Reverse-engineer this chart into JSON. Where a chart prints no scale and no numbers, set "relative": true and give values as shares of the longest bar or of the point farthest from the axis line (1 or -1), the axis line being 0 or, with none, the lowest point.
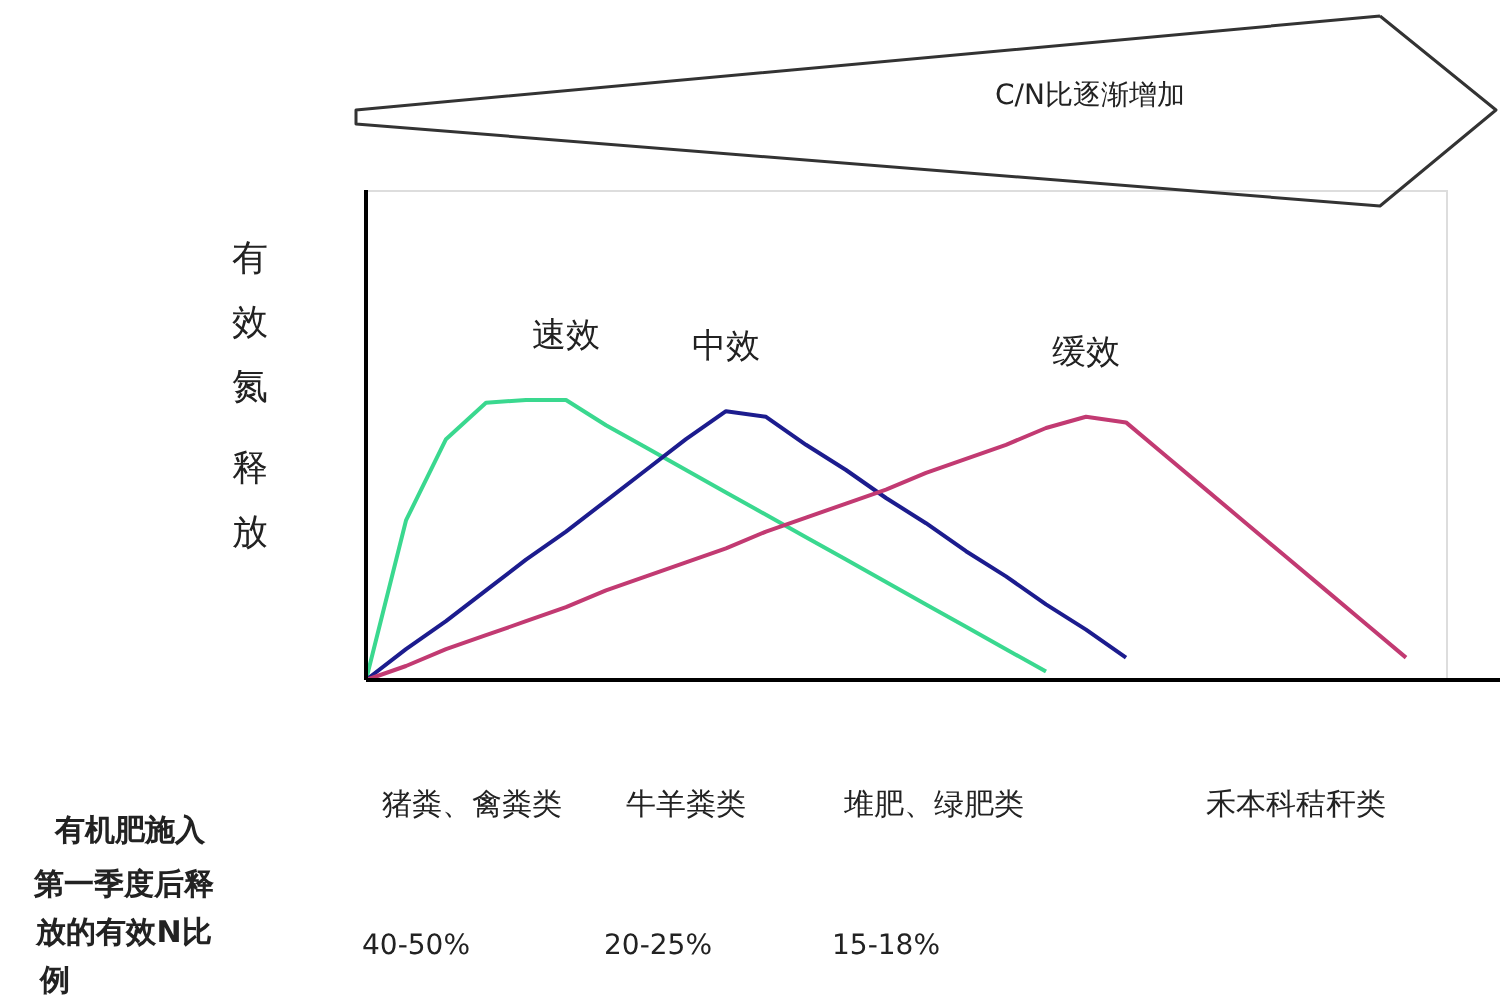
{
  "chart_data": {
    "type": "line",
    "relative": true,
    "ylabel": "有效氮释放",
    "categories": [
      null,
      null,
      null,
      null,
      null,
      null,
      null,
      null,
      null,
      null,
      null,
      null,
      null,
      null,
      null,
      null,
      null,
      null,
      null,
      null,
      null,
      null,
      null,
      null,
      null,
      null,
      null,
      null
    ],
    "series": [
      {
        "name": "速效",
        "color": "#3ad88f",
        "values": [
          0,
          0.57,
          0.86,
          0.99,
          1.0,
          1.0,
          0.91,
          0.83,
          0.75,
          0.67,
          0.59,
          0.51,
          0.43,
          0.35,
          0.27,
          0.19,
          0.11,
          0.03,
          null,
          null,
          null,
          null,
          null,
          null,
          null,
          null,
          null,
          null
        ]
      },
      {
        "name": "中效",
        "color": "#1c1c8e",
        "values": [
          0,
          0.11,
          0.21,
          0.32,
          0.43,
          0.53,
          0.64,
          0.75,
          0.86,
          0.96,
          0.94,
          0.84,
          0.75,
          0.65,
          0.56,
          0.46,
          0.37,
          0.27,
          0.18,
          0.08,
          null,
          null,
          null,
          null,
          null,
          null,
          null,
          null
        ]
      },
      {
        "name": "缓效",
        "color": "#c23a72",
        "values": [
          0,
          0.05,
          0.11,
          0.16,
          0.21,
          0.26,
          0.32,
          0.37,
          0.42,
          0.47,
          0.53,
          0.58,
          0.63,
          0.68,
          0.74,
          0.79,
          0.84,
          0.9,
          0.94,
          0.92,
          0.8,
          0.68,
          0.56,
          0.44,
          0.32,
          0.2,
          0.08,
          null
        ]
      }
    ],
    "annotations": [
      "C/N比逐渐增加",
      "有机肥施入第一季度后释放的有效N比例",
      "猪粪、禽粪类",
      "牛羊粪类",
      "堆肥、绿肥类",
      "禾本科秸秆类",
      "40-50%",
      "20-25%",
      "15-18%"
    ],
    "legend": false,
    "grid": false,
    "marker": "none",
    "line_style": "solid",
    "tick_labels": false
  }
}
